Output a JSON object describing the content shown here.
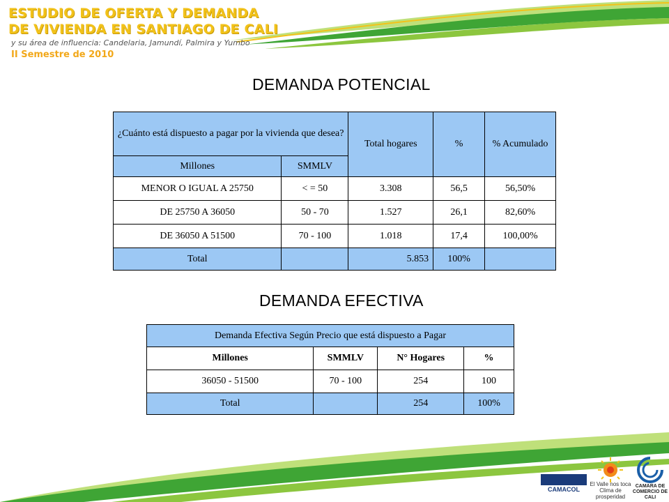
{
  "header": {
    "title_line1": "ESTUDIO DE OFERTA Y DEMANDA",
    "title_line2": "DE VIVIENDA EN SANTIAGO DE CALI",
    "subtitle": "y su área de influencia: Candelaria, Jamundí, Palmira y Yumbo",
    "semester": "II Semestre de 2010"
  },
  "section1": {
    "title": "DEMANDA POTENCIAL",
    "table": {
      "question": "¿Cuánto está dispuesto  a pagar por la vivienda que desea?",
      "col_total": "Total hogares",
      "col_pct": "%",
      "col_acum": "% Acumulado",
      "sub_millones": "Millones",
      "sub_smmlv": "SMMLV",
      "rows": [
        {
          "millones": "MENOR O IGUAL A 25750",
          "smmlv": "< = 50",
          "total": "3.308",
          "pct": "56,5",
          "acum": "56,50%"
        },
        {
          "millones": "DE 25750 A 36050",
          "smmlv": "50 - 70",
          "total": "1.527",
          "pct": "26,1",
          "acum": "82,60%"
        },
        {
          "millones": "DE 36050 A 51500",
          "smmlv": "70 - 100",
          "total": "1.018",
          "pct": "17,4",
          "acum": "100,00%"
        }
      ],
      "total_label": "Total",
      "total_value": "5.853",
      "total_pct": "100%"
    }
  },
  "section2": {
    "title": "DEMANDA EFECTIVA",
    "table": {
      "caption": "Demanda Efectiva Según Precio que está dispuesto a Pagar",
      "col_millones": "Millones",
      "col_smmlv": "SMMLV",
      "col_hogares": "N° Hogares",
      "col_pct": "%",
      "rows": [
        {
          "millones": "36050 - 51500",
          "smmlv": "70 - 100",
          "hogares": "254",
          "pct": "100"
        }
      ],
      "total_label": "Total",
      "total_value": "254",
      "total_pct": "100%"
    }
  },
  "logos": {
    "camacol_text": "CAMACOL",
    "valle_text": "El Valle nos toca",
    "valle_sub": "Clima de prosperidad",
    "ccc_text": "CAMARA DE COMERCIO DE CALI"
  },
  "colors": {
    "header_yellow": "#f2c21a",
    "table_blue": "#9cc8f4",
    "swoosh_green": "#3fa535"
  }
}
